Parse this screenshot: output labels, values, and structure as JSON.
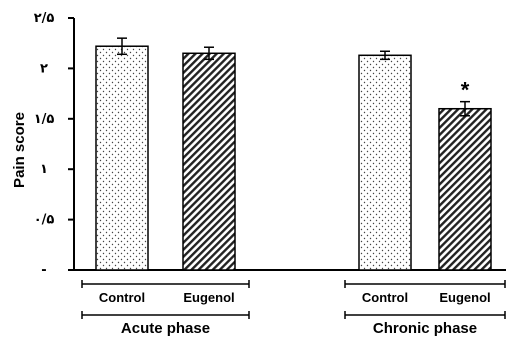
{
  "chart_data": {
    "type": "bar",
    "ylabel": "Pain score",
    "ylim": [
      0,
      2.5
    ],
    "y_ticks": [
      {
        "value": 0,
        "label": "-"
      },
      {
        "value": 0.5,
        "label": "۰/۵"
      },
      {
        "value": 1,
        "label": "۱"
      },
      {
        "value": 1.5,
        "label": "۱/۵"
      },
      {
        "value": 2,
        "label": "۲"
      },
      {
        "value": 2.5,
        "label": "۲/۵"
      }
    ],
    "groups": [
      {
        "name": "Acute phase",
        "categories": [
          "Control",
          "Eugenol"
        ]
      },
      {
        "name": "Chronic phase",
        "categories": [
          "Control",
          "Eugenol"
        ]
      }
    ],
    "bars": [
      {
        "group": "Acute phase",
        "category": "Control",
        "value": 2.22,
        "error": 0.08,
        "pattern": "dots",
        "annotation": ""
      },
      {
        "group": "Acute phase",
        "category": "Eugenol",
        "value": 2.15,
        "error": 0.06,
        "pattern": "hatch",
        "annotation": ""
      },
      {
        "group": "Chronic phase",
        "category": "Control",
        "value": 2.13,
        "error": 0.04,
        "pattern": "dots",
        "annotation": ""
      },
      {
        "group": "Chronic phase",
        "category": "Eugenol",
        "value": 1.6,
        "error": 0.07,
        "pattern": "hatch",
        "annotation": "*"
      }
    ],
    "grid": false
  }
}
